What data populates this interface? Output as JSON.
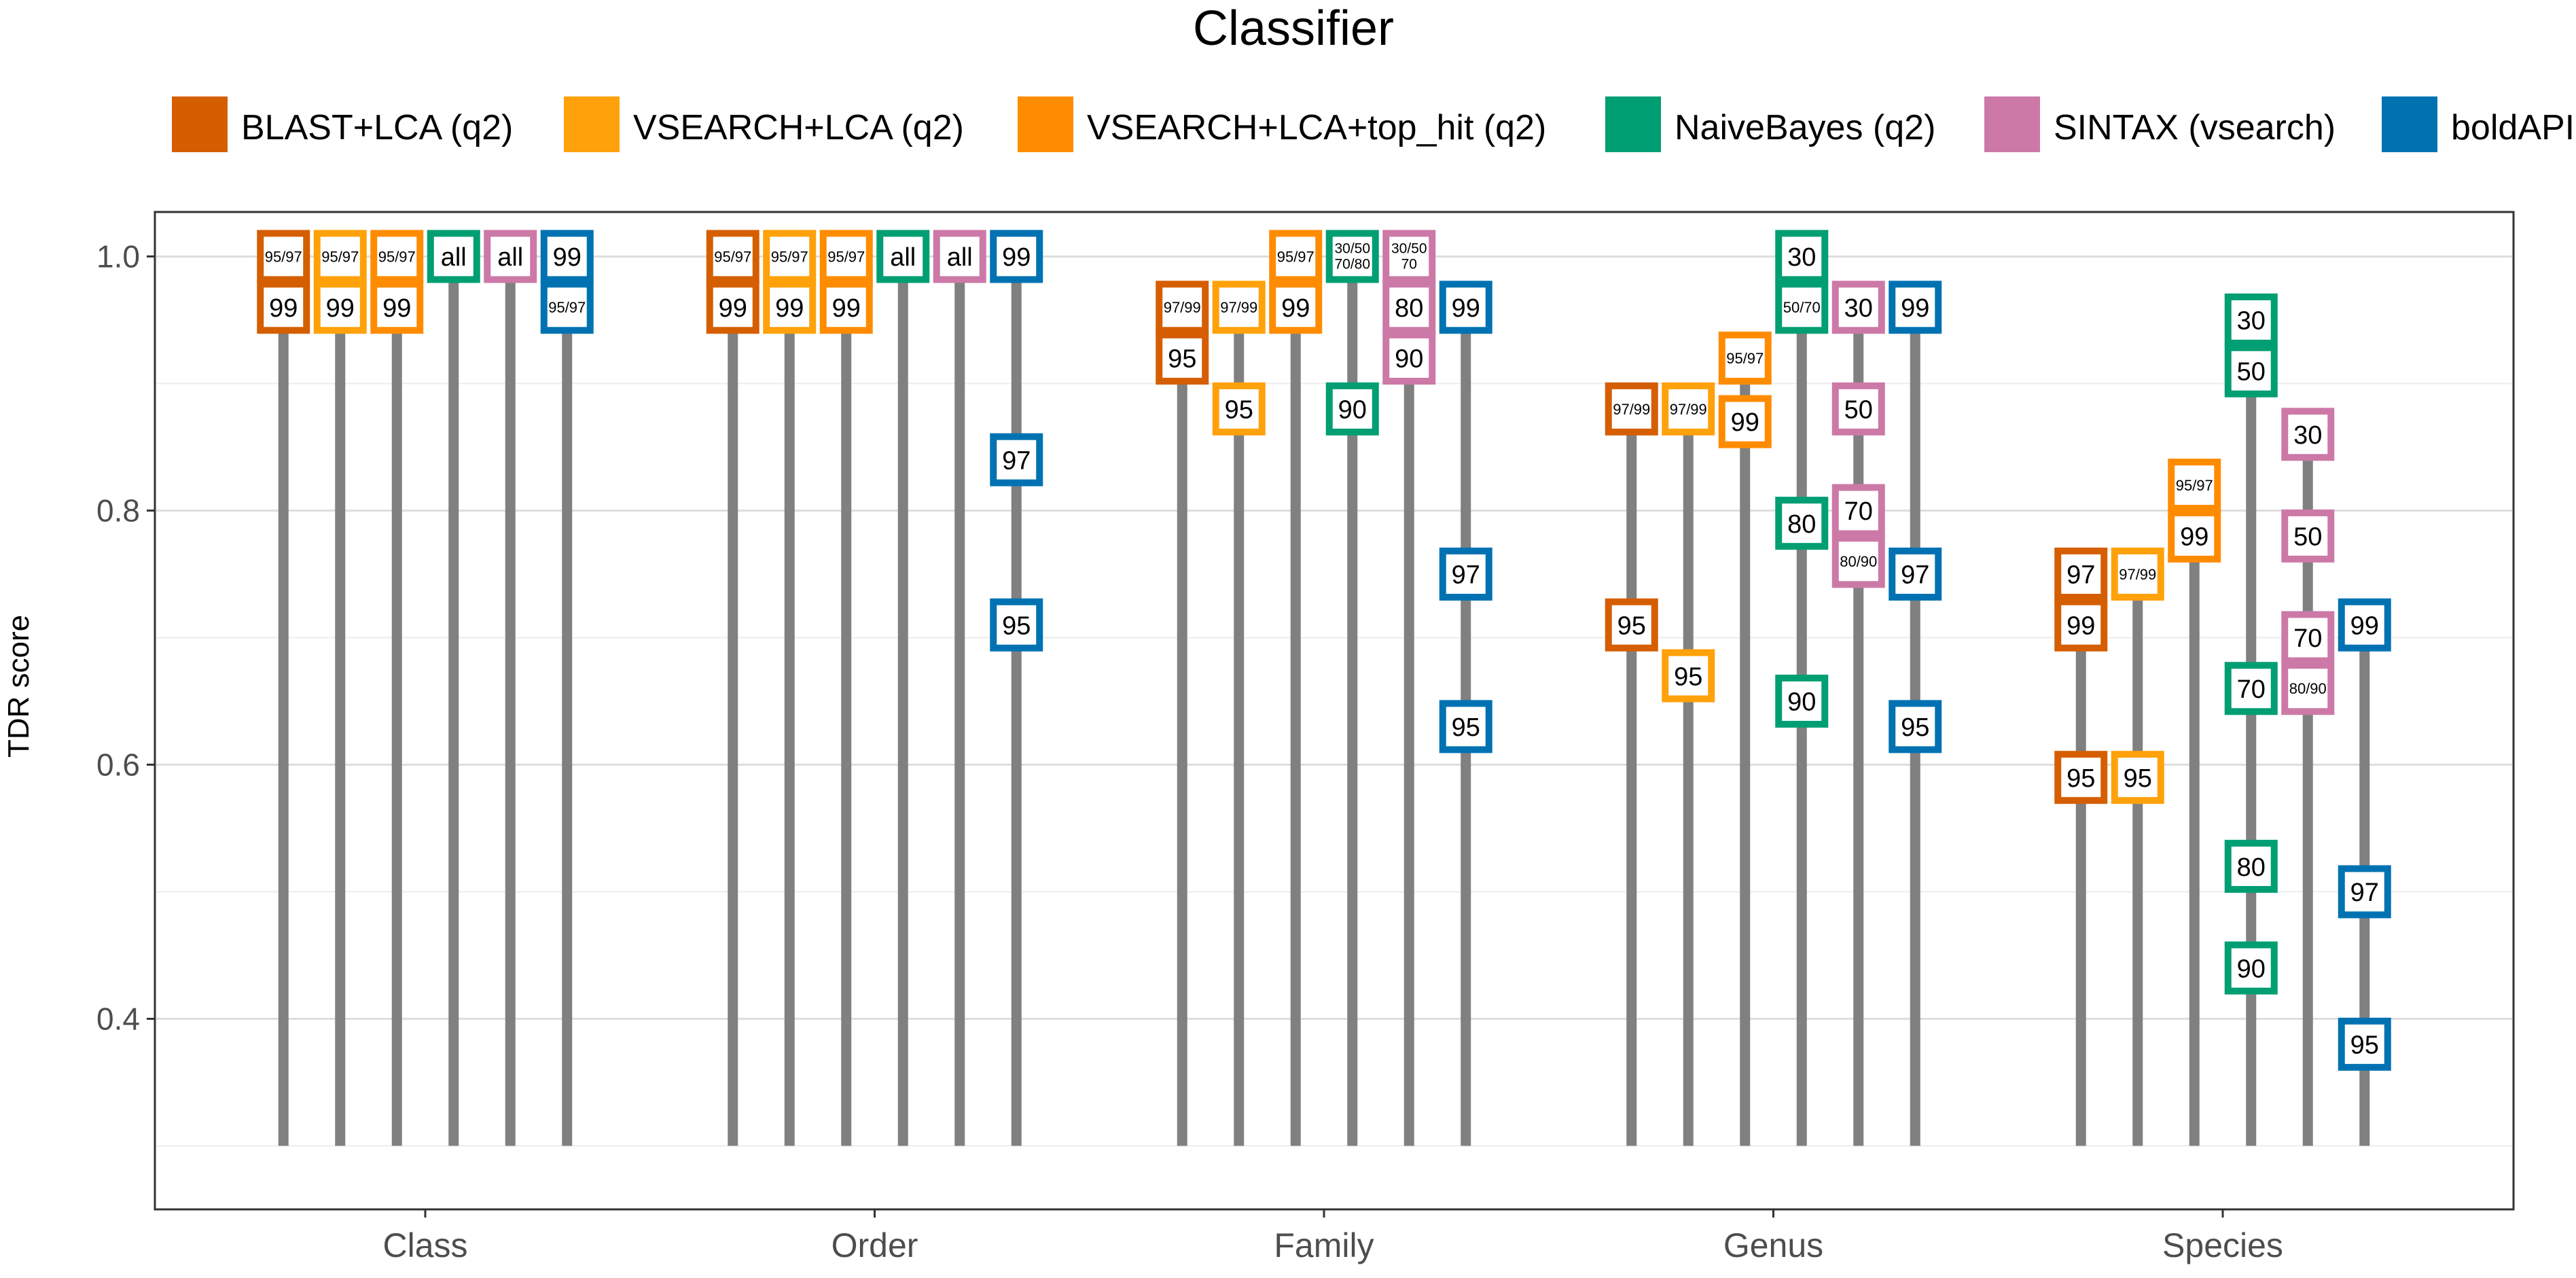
{
  "chart_data": {
    "type": "scatter",
    "title": "",
    "legend_title": "Classifier",
    "legend_position": "top",
    "xlabel": "",
    "ylabel": "TDR score",
    "categories": [
      "Class",
      "Order",
      "Family",
      "Genus",
      "Species"
    ],
    "ylim": [
      0.25,
      1.035
    ],
    "yticks": [
      0.4,
      0.6,
      0.8,
      1.0
    ],
    "yticklabels": [
      "0.4",
      "0.6",
      "0.8",
      "1.0"
    ],
    "grid": true,
    "stem_base": 0.3,
    "series": [
      {
        "name": "BLAST+LCA (q2)",
        "color": "#D55E00",
        "points": {
          "Class": [
            {
              "y": 1.0,
              "label": "95/97"
            },
            {
              "y": 0.96,
              "label": "99"
            }
          ],
          "Order": [
            {
              "y": 1.0,
              "label": "95/97"
            },
            {
              "y": 0.96,
              "label": "99"
            }
          ],
          "Family": [
            {
              "y": 0.96,
              "label": "97/99"
            },
            {
              "y": 0.92,
              "label": "95"
            }
          ],
          "Genus": [
            {
              "y": 0.88,
              "label": "97/99"
            },
            {
              "y": 0.71,
              "label": "95"
            }
          ],
          "Species": [
            {
              "y": 0.75,
              "label": "97"
            },
            {
              "y": 0.71,
              "label": "99"
            },
            {
              "y": 0.59,
              "label": "95"
            }
          ]
        }
      },
      {
        "name": "VSEARCH+LCA (q2)",
        "color": "#FFA10A",
        "points": {
          "Class": [
            {
              "y": 1.0,
              "label": "95/97"
            },
            {
              "y": 0.96,
              "label": "99"
            }
          ],
          "Order": [
            {
              "y": 1.0,
              "label": "95/97"
            },
            {
              "y": 0.96,
              "label": "99"
            }
          ],
          "Family": [
            {
              "y": 0.96,
              "label": "97/99"
            },
            {
              "y": 0.88,
              "label": "95"
            }
          ],
          "Genus": [
            {
              "y": 0.88,
              "label": "97/99"
            },
            {
              "y": 0.67,
              "label": "95"
            }
          ],
          "Species": [
            {
              "y": 0.75,
              "label": "97/99"
            },
            {
              "y": 0.59,
              "label": "95"
            }
          ]
        }
      },
      {
        "name": "VSEARCH+LCA+top_hit (q2)",
        "color": "#FF8C00",
        "points": {
          "Class": [
            {
              "y": 1.0,
              "label": "95/97"
            },
            {
              "y": 0.96,
              "label": "99"
            }
          ],
          "Order": [
            {
              "y": 1.0,
              "label": "95/97"
            },
            {
              "y": 0.96,
              "label": "99"
            }
          ],
          "Family": [
            {
              "y": 1.0,
              "label": "95/97"
            },
            {
              "y": 0.96,
              "label": "99"
            }
          ],
          "Genus": [
            {
              "y": 0.92,
              "label": "95/97"
            },
            {
              "y": 0.87,
              "label": "99"
            }
          ],
          "Species": [
            {
              "y": 0.82,
              "label": "95/97"
            },
            {
              "y": 0.78,
              "label": "99"
            }
          ]
        }
      },
      {
        "name": "NaiveBayes (q2)",
        "color": "#009E73",
        "points": {
          "Class": [
            {
              "y": 1.0,
              "label": "all"
            }
          ],
          "Order": [
            {
              "y": 1.0,
              "label": "all"
            }
          ],
          "Family": [
            {
              "y": 1.0,
              "label": "30/50\n70/80"
            },
            {
              "y": 0.88,
              "label": "90"
            }
          ],
          "Genus": [
            {
              "y": 1.0,
              "label": "30"
            },
            {
              "y": 0.96,
              "label": "50/70"
            },
            {
              "y": 0.79,
              "label": "80"
            },
            {
              "y": 0.65,
              "label": "90"
            }
          ],
          "Species": [
            {
              "y": 0.95,
              "label": "30"
            },
            {
              "y": 0.91,
              "label": "50"
            },
            {
              "y": 0.66,
              "label": "70"
            },
            {
              "y": 0.52,
              "label": "80"
            },
            {
              "y": 0.44,
              "label": "90"
            }
          ]
        }
      },
      {
        "name": "SINTAX (vsearch)",
        "color": "#CC79A7",
        "points": {
          "Class": [
            {
              "y": 1.0,
              "label": "all"
            }
          ],
          "Order": [
            {
              "y": 1.0,
              "label": "all"
            }
          ],
          "Family": [
            {
              "y": 1.0,
              "label": "30/50\n70"
            },
            {
              "y": 0.96,
              "label": "80"
            },
            {
              "y": 0.92,
              "label": "90"
            }
          ],
          "Genus": [
            {
              "y": 0.96,
              "label": "30"
            },
            {
              "y": 0.88,
              "label": "50"
            },
            {
              "y": 0.8,
              "label": "70"
            },
            {
              "y": 0.76,
              "label": "80/90"
            }
          ],
          "Species": [
            {
              "y": 0.86,
              "label": "30"
            },
            {
              "y": 0.78,
              "label": "50"
            },
            {
              "y": 0.7,
              "label": "70"
            },
            {
              "y": 0.66,
              "label": "80/90"
            }
          ]
        }
      },
      {
        "name": "boldAPI",
        "color": "#0072B2",
        "points": {
          "Class": [
            {
              "y": 1.0,
              "label": "99"
            },
            {
              "y": 0.96,
              "label": "95/97"
            }
          ],
          "Order": [
            {
              "y": 1.0,
              "label": "99"
            },
            {
              "y": 0.84,
              "label": "97"
            },
            {
              "y": 0.71,
              "label": "95"
            }
          ],
          "Family": [
            {
              "y": 0.96,
              "label": "99"
            },
            {
              "y": 0.75,
              "label": "97"
            },
            {
              "y": 0.63,
              "label": "95"
            }
          ],
          "Genus": [
            {
              "y": 0.96,
              "label": "99"
            },
            {
              "y": 0.75,
              "label": "97"
            },
            {
              "y": 0.63,
              "label": "95"
            }
          ],
          "Species": [
            {
              "y": 0.71,
              "label": "99"
            },
            {
              "y": 0.5,
              "label": "97"
            },
            {
              "y": 0.38,
              "label": "95"
            }
          ]
        }
      }
    ]
  }
}
